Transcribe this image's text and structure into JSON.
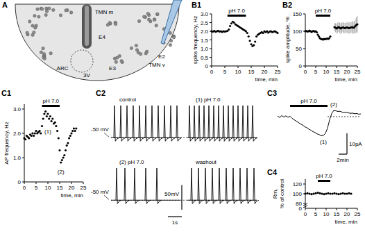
{
  "diagram": {
    "title": "A",
    "labels": [
      "TMN m",
      "E4",
      "E2",
      "TMN v",
      "ARC",
      "3V",
      "E3"
    ]
  },
  "chart_data": [
    {
      "type": "scatter",
      "title": "B1",
      "xlabel": "time, min",
      "ylabel": [
        "spike frequency, Hz"
      ],
      "x": [
        0,
        0.5,
        1,
        1.5,
        2,
        2.5,
        3,
        3.5,
        4,
        4.5,
        5,
        5.5,
        6,
        6.5,
        7,
        7.5,
        8,
        8.5,
        9,
        9.5,
        10,
        10.5,
        11,
        11.5,
        12,
        12.5,
        13,
        13.5,
        14,
        14.5,
        15,
        15.5,
        16,
        16.5,
        17,
        17.5,
        18,
        18.5,
        19,
        19.5,
        20,
        20.5,
        21,
        21.5,
        22,
        22.5,
        23,
        23.5,
        24,
        24.5,
        25
      ],
      "values": [
        2.0,
        1.98,
        2.02,
        1.97,
        2.0,
        2.03,
        1.98,
        2.0,
        1.96,
        2.0,
        1.98,
        2.0,
        2.02,
        2.1,
        2.3,
        2.45,
        2.55,
        2.5,
        2.4,
        2.35,
        2.3,
        2.25,
        2.2,
        2.15,
        2.1,
        2.05,
        2.0,
        1.9,
        1.7,
        1.45,
        1.25,
        1.15,
        1.2,
        1.4,
        1.7,
        1.8,
        1.85,
        1.9,
        1.95,
        1.9,
        2.0,
        1.95,
        2.0,
        1.92,
        1.98,
        2.0,
        1.95,
        1.98,
        2.0,
        1.95,
        1.9
      ],
      "xlim": [
        0,
        25
      ],
      "ylim": [
        0,
        3
      ],
      "xticks": [
        0,
        5,
        10,
        15,
        20,
        25
      ],
      "yticks": [
        0,
        0.5,
        {
          "value": 1,
          "label": "1.0"
        },
        1.5,
        {
          "value": 2,
          "label": "2.0"
        },
        2.5,
        {
          "value": 3,
          "label": "3.0"
        }
      ],
      "marker": "circle",
      "color": "#000000",
      "annotations": [
        {
          "text": "pH 7.0",
          "x": [
            6,
            13
          ]
        }
      ]
    },
    {
      "type": "scatter",
      "title": "B2",
      "xlabel": "time, min",
      "ylabel": [
        "spike amplitude, %"
      ],
      "x": [
        0,
        0.5,
        1,
        1.5,
        2,
        2.5,
        3,
        3.5,
        4,
        4.5,
        5,
        5.5,
        6,
        6.5,
        7,
        7.5,
        8,
        8.5,
        9,
        9.5,
        10,
        10.5,
        11,
        11.5,
        12,
        12.5,
        13,
        13.5,
        14,
        14.5,
        15,
        15.5,
        16,
        16.5,
        17,
        17.5,
        18,
        18.5,
        19,
        19.5,
        20,
        20.5,
        21,
        21.5,
        22,
        22.5,
        23,
        23.5,
        24,
        24.5,
        25
      ],
      "values": [
        100,
        101,
        99,
        100,
        102,
        100,
        98,
        100,
        101,
        99,
        100,
        97,
        90,
        85,
        80,
        78,
        77,
        76,
        78,
        77,
        78,
        79,
        78,
        80,
        85,
        null,
        null,
        null,
        112,
        110,
        108,
        110,
        112,
        110,
        108,
        110,
        111,
        110,
        109,
        110,
        111,
        110,
        109,
        110,
        111,
        112,
        110,
        111,
        115,
        118,
        120
      ],
      "errors": [
        2,
        2,
        2,
        2,
        2,
        2,
        2,
        2,
        2,
        2,
        2,
        2,
        3,
        3,
        3,
        3,
        3,
        3,
        3,
        3,
        3,
        3,
        3,
        3,
        3,
        null,
        null,
        null,
        12,
        13,
        14,
        15,
        14,
        15,
        16,
        15,
        14,
        16,
        15,
        14,
        16,
        15,
        17,
        16,
        15,
        18,
        17,
        18,
        20,
        22,
        24
      ],
      "xlim": [
        0,
        25
      ],
      "ylim": [
        0,
        150
      ],
      "xticks": [
        0,
        5,
        10,
        15,
        20,
        25
      ],
      "yticks": [
        0,
        50,
        100,
        150
      ],
      "marker": "circle",
      "color": "#000000",
      "annotations": [
        {
          "text": "pH 7.0",
          "x": [
            5,
            12
          ]
        }
      ]
    },
    {
      "type": "scatter",
      "title": "C1",
      "xlabel": "time, min",
      "ylabel": [
        "AP frequency, Hz"
      ],
      "x": [
        0,
        0.5,
        1,
        1.5,
        2,
        2.5,
        3,
        3.5,
        4,
        4.5,
        5,
        5.5,
        6,
        6.5,
        7,
        7.5,
        8,
        8.5,
        9,
        9.5,
        10,
        10.5,
        11,
        11.5,
        12,
        12.5,
        13,
        13.5,
        14,
        14.5,
        15,
        15.5,
        16,
        16.5,
        17,
        17.5,
        18,
        18.5,
        19,
        19.5,
        20,
        20.5,
        21,
        21.5,
        22
      ],
      "values": [
        1.8,
        1.75,
        1.9,
        1.85,
        1.8,
        1.95,
        1.9,
        2.0,
        1.9,
        2.0,
        2.1,
        2.0,
        2.05,
        2.1,
        2.0,
        2.3,
        2.6,
        2.8,
        2.9,
        2.7,
        2.8,
        2.6,
        2.7,
        2.5,
        2.6,
        2.4,
        2.45,
        2.3,
        2.1,
        1.8,
        1.3,
        0.8,
        0.9,
        1.0,
        1.1,
        1.3,
        1.5,
        1.6,
        1.8,
        1.9,
        2.0,
        2.1,
        2.2,
        2.1,
        2.2
      ],
      "xlim": [
        0,
        25
      ],
      "ylim": [
        0,
        3.2
      ],
      "xticks": [
        0,
        5,
        10,
        15,
        20,
        25
      ],
      "yticks": [
        0,
        {
          "value": 1,
          "label": "1.0"
        },
        {
          "value": 2,
          "label": "2.0"
        },
        {
          "value": 3,
          "label": "3.0"
        }
      ],
      "marker": "circle",
      "color": "#000000",
      "annotations": [
        {
          "text": "pH 7.0",
          "x": [
            7.5,
            15
          ]
        },
        {
          "text": "(1)",
          "x": 10,
          "y": 2.0
        },
        {
          "text": "(2)",
          "x": 15.5,
          "y": 0.35
        }
      ]
    },
    {
      "type": "trace",
      "title": "C2",
      "xlim": [
        0,
        5
      ],
      "ylim": [
        -58,
        15
      ],
      "baseline": -50,
      "spike_height": 65,
      "tick_labels": false,
      "color": "#000000",
      "row_labels": [
        "-50 mV",
        "-50 mV"
      ],
      "traces": [
        {
          "name": "control",
          "spike_times": [
            0.25,
            0.7,
            1.15,
            1.6,
            2.05,
            2.5,
            2.95,
            3.4,
            3.85,
            4.3,
            4.75
          ]
        },
        {
          "name": "(1) pH 7.0",
          "spike_times": [
            0.15,
            0.5,
            0.85,
            1.2,
            1.55,
            1.9,
            2.25,
            2.6,
            2.95,
            3.3,
            3.65,
            4.0,
            4.35,
            4.7
          ]
        },
        {
          "name": "(2) pH 7.0",
          "spike_times": [
            0.4,
            1.0,
            1.7,
            2.5,
            3.3
          ]
        },
        {
          "name": "washout",
          "spike_times": [
            0.3,
            0.8,
            1.3,
            1.8,
            2.3,
            2.8,
            3.3,
            3.8,
            4.3,
            4.8
          ]
        }
      ],
      "scale_bars": [
        {
          "label": "50mV",
          "value": 50,
          "axis": "y"
        },
        {
          "label": "1s",
          "value": 1,
          "axis": "x"
        }
      ]
    },
    {
      "type": "line",
      "title": "C3",
      "x": [
        0,
        0.5,
        1,
        1.5,
        2,
        2.5,
        3,
        3.5,
        4,
        4.5,
        5,
        5.5,
        6,
        6.5,
        7,
        7.5,
        8,
        8.5,
        9,
        9.5,
        10,
        10.5,
        11,
        11.5,
        12,
        12.5,
        13,
        13.5,
        14,
        14.5,
        15,
        15.5,
        16,
        16.5,
        17,
        17.5,
        18,
        18.5,
        19,
        19.5,
        20
      ],
      "values": [
        0.3,
        -0.4,
        0.5,
        -0.2,
        0.4,
        -0.3,
        0.2,
        -0.8,
        -1.5,
        -2.2,
        -2.8,
        -3.5,
        -4.0,
        -4.8,
        -5.3,
        -6.0,
        -6.5,
        -7.2,
        -7.6,
        -8.3,
        -8.6,
        -9.2,
        -9.0,
        -8.0,
        -5.5,
        -1.5,
        1.5,
        3.0,
        2.8,
        2.5,
        2.6,
        2.2,
        2.0,
        2.1,
        1.8,
        1.6,
        1.7,
        1.4,
        1.5,
        1.2,
        1.3
      ],
      "xlim": [
        0,
        20
      ],
      "ylim": [
        -14,
        6
      ],
      "baseline": 0,
      "tick_labels": false,
      "line_style": "solid",
      "color": "#000000",
      "annotations": [
        {
          "text": "pH 7.0",
          "x": [
            3,
            12
          ]
        },
        {
          "text": "(1)",
          "x": 11,
          "y": -13
        },
        {
          "text": "(2)",
          "x": 13.5,
          "y": 5
        }
      ],
      "scale_bars": [
        {
          "label": "2min",
          "value": 2,
          "axis": "x"
        },
        {
          "label": "10pA",
          "value": 10,
          "axis": "y"
        }
      ]
    },
    {
      "type": "scatter",
      "title": "C4",
      "xlabel": "time, min",
      "ylabel": [
        "Rm,",
        "% of control"
      ],
      "x": [
        0,
        1,
        2,
        3,
        4,
        5,
        6,
        7,
        8,
        9,
        10,
        11,
        12,
        13,
        14,
        15,
        16,
        17,
        18,
        19,
        20,
        21,
        22
      ],
      "values": [
        100,
        101,
        100,
        99,
        100,
        101,
        102,
        101,
        100,
        99,
        100,
        101,
        100,
        100,
        101,
        100,
        99,
        100,
        101,
        100,
        100,
        101,
        100
      ],
      "xlim": [
        0,
        25
      ],
      "ylim": [
        70,
        130
      ],
      "xticks": [
        0,
        5,
        10,
        15,
        20,
        25
      ],
      "yticks": [
        80,
        100,
        120
      ],
      "marker": "circle",
      "color": "#000000",
      "annotations": [
        {
          "text": "pH 7.0",
          "x": [
            6,
            12
          ]
        },
        {
          "text": "0"
        }
      ]
    }
  ]
}
